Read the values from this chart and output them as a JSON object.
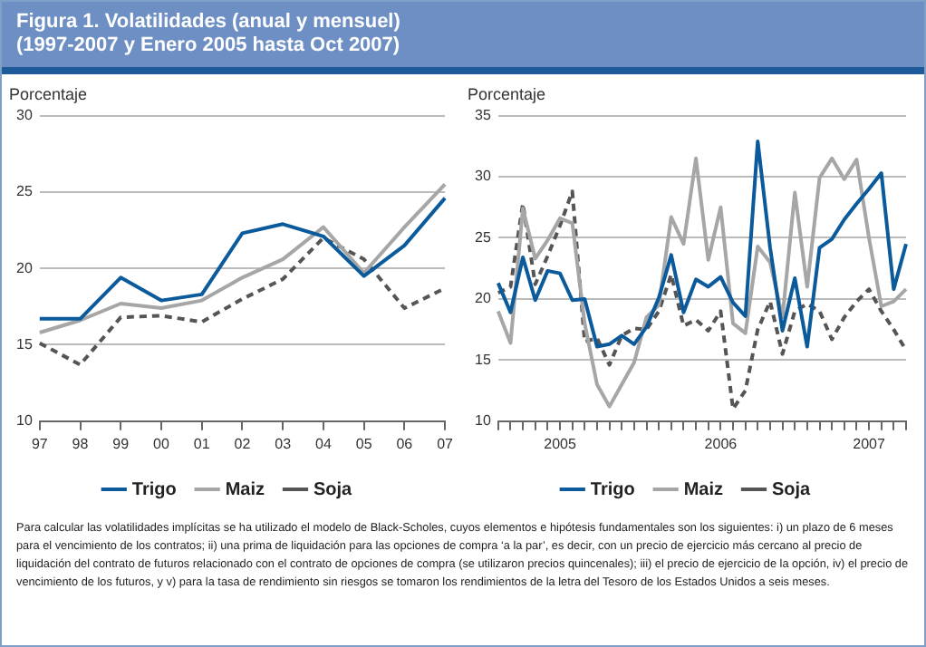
{
  "chart_data": [
    {
      "type": "line",
      "title": "Figura 1. Volatilidades (anual y mensuel)\n(1997-2007 y Enero 2005 hasta Oct 2007)",
      "ylabel": "Porcentaje",
      "categories": [
        "97",
        "98",
        "99",
        "00",
        "01",
        "02",
        "03",
        "04",
        "05",
        "06",
        "07"
      ],
      "series": [
        {
          "name": "Trigo",
          "color": "#0a5a9c",
          "values": [
            16.7,
            16.7,
            19.4,
            17.9,
            18.3,
            22.3,
            22.9,
            22.1,
            19.5,
            21.5,
            24.6
          ]
        },
        {
          "name": "Maiz",
          "color": "#a6a6a6",
          "values": [
            15.8,
            16.6,
            17.7,
            17.4,
            17.9,
            19.4,
            20.6,
            22.7,
            19.7,
            22.7,
            25.5
          ]
        },
        {
          "name": "Soja",
          "color": "#555555",
          "line_style": "dashed",
          "values": [
            15.1,
            13.7,
            16.8,
            16.9,
            16.5,
            18.0,
            19.3,
            22.0,
            20.6,
            17.4,
            18.7
          ]
        }
      ],
      "ylim": [
        10,
        30
      ],
      "yticks": [
        10,
        15,
        20,
        25,
        30
      ],
      "grid": "y",
      "legend": "bottom",
      "marker": "none",
      "annotations": [
        "Para calcular las volatilidades implícitas se ha utilizado el modelo de Black-Scholes, cuyos elementos e hipótesis fundamentales son los siguientes: i) un plazo de 6 meses para el vencimiento de los contratos; ii) una prima de liquidación para las opciones de compra ‘a la par’, es decir, con un precio de ejercicio más cercano al precio de liquidación del contrato de futuros relacionado con el contrato de opciones de compra (se utilizaron precios quincenales); iii) el precio de ejercicio de la opción, iv) el precio de vencimiento de los futuros, y v) para la tasa de rendimiento sin riesgos se tomaron los rendimientos de la letra del Tesoro de los Estados Unidos a seis meses."
      ]
    },
    {
      "type": "line",
      "ylabel": "Porcentaje",
      "categories": [
        null,
        null,
        null,
        null,
        null,
        "2005",
        null,
        null,
        null,
        null,
        null,
        null,
        null,
        null,
        null,
        null,
        null,
        null,
        "2006",
        null,
        null,
        null,
        null,
        null,
        null,
        null,
        null,
        null,
        null,
        null,
        "2007",
        null,
        null,
        null
      ],
      "series": [
        {
          "name": "Trigo",
          "color": "#0a5a9c",
          "values": [
            21.3,
            18.9,
            23.4,
            19.9,
            22.3,
            22.1,
            19.9,
            20.0,
            16.1,
            16.3,
            17.0,
            16.3,
            17.7,
            20.1,
            23.6,
            18.9,
            21.6,
            21.0,
            21.8,
            19.7,
            18.6,
            32.9,
            24.2,
            17.4,
            21.7,
            16.1,
            24.2,
            24.9,
            26.5,
            27.8,
            29.0,
            30.3,
            20.8,
            24.5
          ]
        },
        {
          "name": "Maiz",
          "color": "#a6a6a6",
          "values": [
            19.0,
            16.4,
            27.4,
            23.3,
            24.8,
            26.6,
            26.2,
            18.0,
            13.0,
            11.2,
            13.0,
            14.8,
            18.5,
            19.5,
            26.7,
            24.5,
            31.5,
            23.2,
            27.5,
            18.0,
            17.2,
            24.3,
            23.0,
            18.5,
            28.7,
            21.0,
            29.9,
            31.5,
            29.8,
            31.4,
            25.0,
            19.4,
            19.8,
            20.8
          ]
        },
        {
          "name": "Soja",
          "color": "#555555",
          "line_style": "dashed",
          "values": [
            20.5,
            21.0,
            27.8,
            21.2,
            23.5,
            26.0,
            28.8,
            16.5,
            16.8,
            14.6,
            17.0,
            17.6,
            17.5,
            19.0,
            22.0,
            17.8,
            18.3,
            17.4,
            19.0,
            11.0,
            12.5,
            17.5,
            19.8,
            15.5,
            19.0,
            19.6,
            19.0,
            16.7,
            18.5,
            19.8,
            20.8,
            19.0,
            17.5,
            15.8
          ]
        }
      ],
      "ylim": [
        10,
        35
      ],
      "yticks": [
        10,
        15,
        20,
        25,
        30,
        35
      ],
      "grid": "y",
      "legend": "bottom",
      "marker": "none"
    }
  ]
}
